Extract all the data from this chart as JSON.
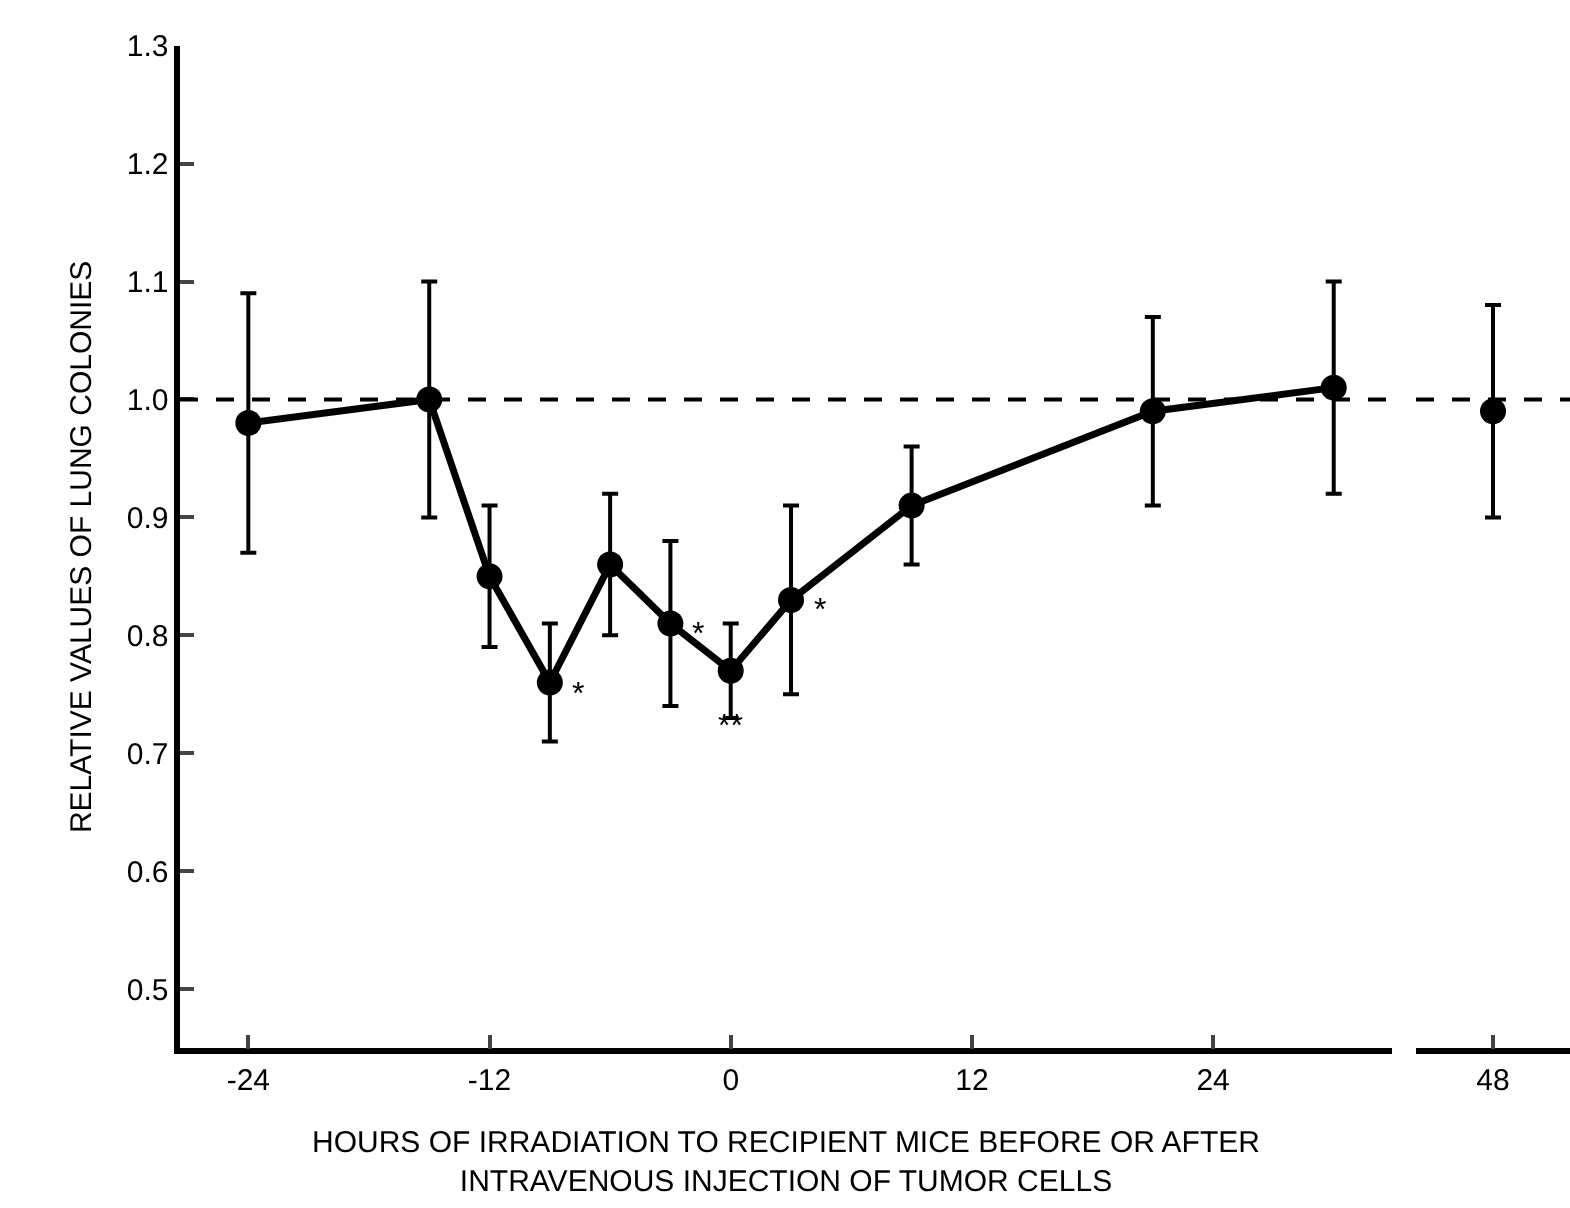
{
  "chart_data": [
    {
      "type": "line",
      "ylabel": "RELATIVE VALUES OF LUNG COLONIES",
      "xlabel": "HOURS OF IRRADIATION TO RECIPIENT MICE BEFORE OR AFTER\nINTRAVENOUS INJECTION OF TUMOR CELLS",
      "x": [
        -24,
        -15,
        -12,
        -9,
        -6,
        -3,
        0,
        3,
        9,
        21,
        30
      ],
      "xlim": [
        -27.4,
        32.9
      ],
      "xticks": [
        -24,
        -12,
        0,
        12,
        24
      ],
      "ylim": [
        0.45,
        1.3
      ],
      "yticks": [
        {
          "value": 0.5,
          "label": "0.5"
        },
        {
          "value": 0.6,
          "label": "0.6"
        },
        {
          "value": 0.7,
          "label": "0.7"
        },
        {
          "value": 0.8,
          "label": "0.8"
        },
        {
          "value": 0.9,
          "label": "0.9"
        },
        {
          "value": 1.0,
          "label": "1.0"
        },
        {
          "value": 1.1,
          "label": "1.1"
        },
        {
          "value": 1.2,
          "label": "1.2"
        },
        {
          "value": 1.3,
          "label": "1.3"
        }
      ],
      "series": [
        {
          "color": "#000000",
          "values": [
            0.98,
            1.0,
            0.85,
            0.76,
            0.86,
            0.81,
            0.77,
            0.83,
            0.91,
            0.99,
            1.01
          ],
          "errors": [
            0.11,
            0.1,
            0.06,
            0.05,
            0.06,
            0.07,
            0.04,
            0.08,
            0.05,
            0.08,
            0.09
          ]
        }
      ],
      "marker": "circle",
      "line_style": "solid",
      "ref_lines": [
        {
          "axis": "y",
          "value": 1.0,
          "color": "#000000",
          "line_style": "dashed"
        }
      ],
      "annotations": [
        {
          "text": "*",
          "x": -9,
          "y": 0.76
        },
        {
          "text": "*",
          "x": -3,
          "y": 0.81
        },
        {
          "text": "**",
          "x": 0,
          "y": 0.77
        },
        {
          "text": "*",
          "x": 3,
          "y": 0.83
        }
      ]
    },
    {
      "type": "line",
      "categories": [
        "48"
      ],
      "ylim": [
        0.45,
        1.3
      ],
      "tick_labels": "x",
      "series": [
        {
          "color": "#000000",
          "values": [
            0.99
          ],
          "errors": [
            0.09
          ]
        }
      ],
      "marker": "circle",
      "line_style": "solid",
      "ref_lines": [
        {
          "axis": "y",
          "value": 1.0,
          "color": "#000000",
          "line_style": "dashed"
        }
      ]
    }
  ]
}
